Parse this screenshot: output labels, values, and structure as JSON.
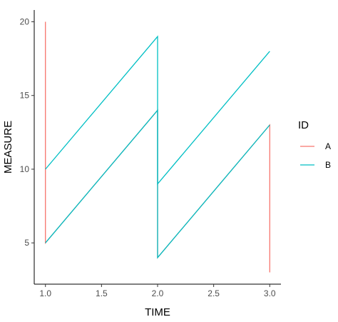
{
  "chart_data": {
    "type": "line",
    "title": "",
    "xlabel": "TIME",
    "ylabel": "MEASURE",
    "xlim": [
      0.9,
      3.1
    ],
    "ylim": [
      2.2,
      20.8
    ],
    "xticks": [
      1.0,
      1.5,
      2.0,
      2.5,
      3.0
    ],
    "xtick_labels": [
      "1.0",
      "1.5",
      "2.0",
      "2.5",
      "3.0"
    ],
    "yticks": [
      5,
      10,
      15,
      20
    ],
    "ytick_labels": [
      "5",
      "10",
      "15",
      "20"
    ],
    "grid": false,
    "legend": {
      "title": "ID",
      "position": "right",
      "entries": [
        "A",
        "B"
      ]
    },
    "series": [
      {
        "name": "A",
        "color": "#F8766D",
        "x": [
          1,
          1,
          2,
          2,
          3,
          3
        ],
        "y": [
          20,
          5,
          14,
          4,
          13,
          3
        ]
      },
      {
        "name": "B",
        "color": "#00BFC4",
        "x": [
          1,
          2,
          2,
          3
        ],
        "y": [
          10,
          19,
          9,
          18
        ]
      },
      {
        "name": "B",
        "color": "#00BFC4",
        "x": [
          1,
          2,
          2,
          3
        ],
        "y": [
          5,
          14,
          4,
          13
        ]
      }
    ]
  }
}
